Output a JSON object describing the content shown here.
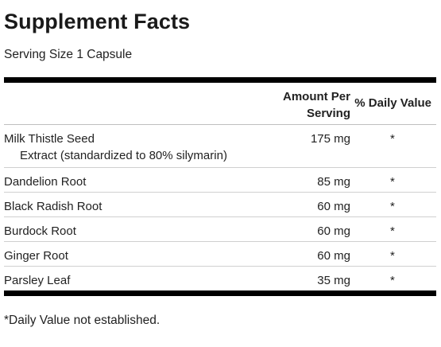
{
  "title": "Supplement Facts",
  "serving_size": "Serving Size 1 Capsule",
  "headers": {
    "amount_line1": "Amount Per",
    "amount_line2": "Serving",
    "daily_value": "% Daily Value"
  },
  "rows": [
    {
      "name": "Milk Thistle Seed",
      "sub": "Extract (standardized to 80% silymarin)",
      "amount": "175 mg",
      "dv": "*"
    },
    {
      "name": "Dandelion Root",
      "amount": "85 mg",
      "dv": "*"
    },
    {
      "name": "Black Radish Root",
      "amount": "60 mg",
      "dv": "*"
    },
    {
      "name": "Burdock Root",
      "amount": "60 mg",
      "dv": "*"
    },
    {
      "name": "Ginger Root",
      "amount": "60 mg",
      "dv": "*"
    },
    {
      "name": "Parsley Leaf",
      "amount": "35 mg",
      "dv": "*"
    }
  ],
  "footnote": "*Daily Value not established."
}
